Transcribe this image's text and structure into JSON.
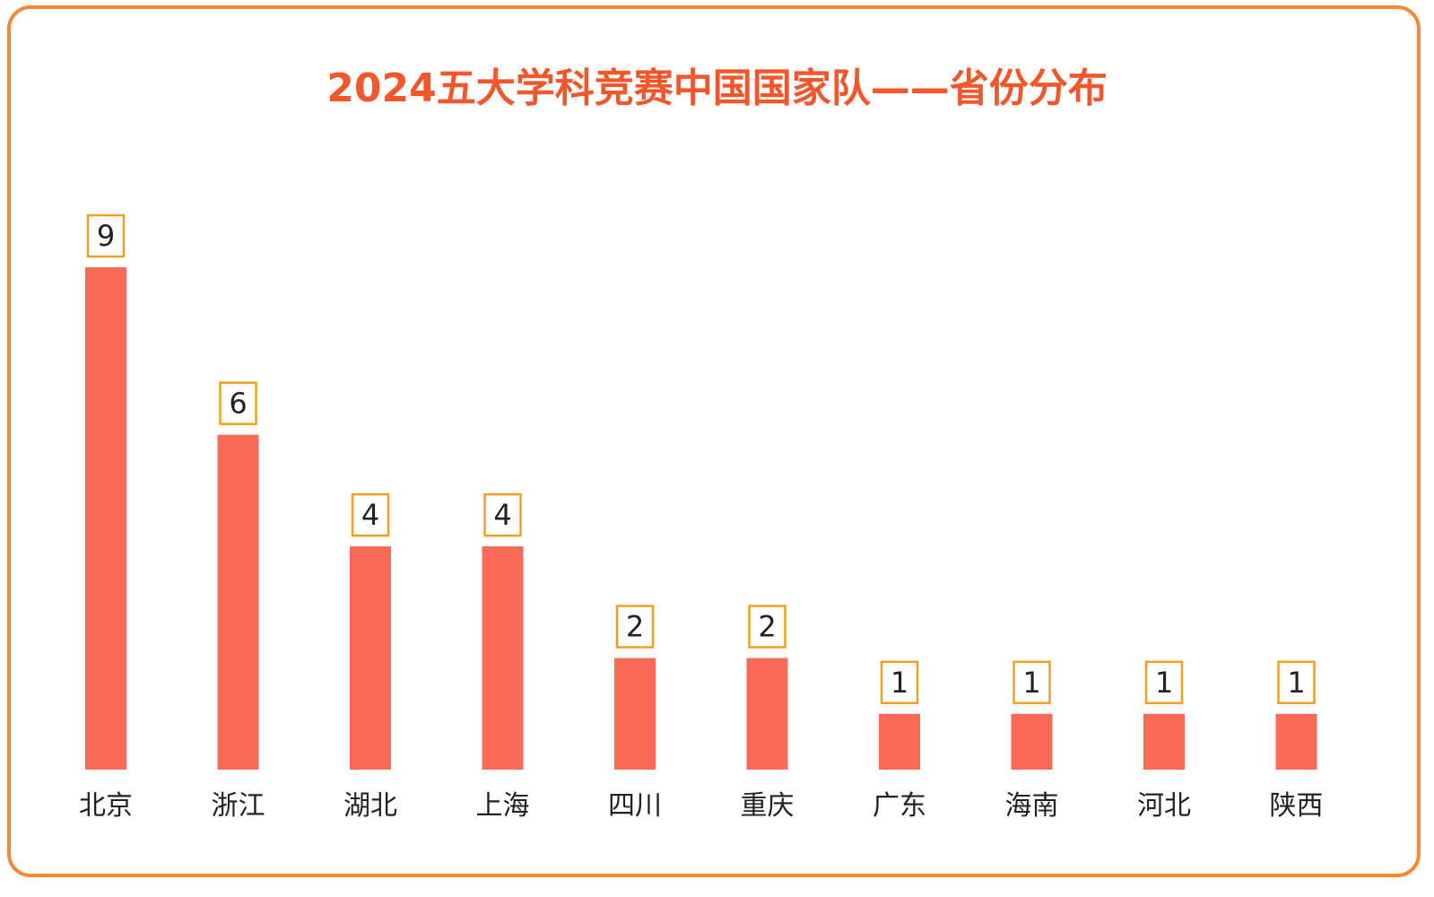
{
  "chart_data": {
    "type": "bar",
    "title": "2024五大学科竞赛中国国家队——省份分布",
    "categories": [
      "北京",
      "浙江",
      "湖北",
      "上海",
      "四川",
      "重庆",
      "广东",
      "海南",
      "河北",
      "陕西"
    ],
    "values": [
      9,
      6,
      4,
      4,
      2,
      2,
      1,
      1,
      1,
      1
    ],
    "xlabel": "",
    "ylabel": "",
    "ylim": [
      0,
      9
    ],
    "grid": false,
    "legend": "none",
    "data_labels": true
  },
  "colors": {
    "bar": "#f96b56",
    "title": "#f2562b",
    "border": "#f5893a",
    "label_border": "#f0a020"
  }
}
